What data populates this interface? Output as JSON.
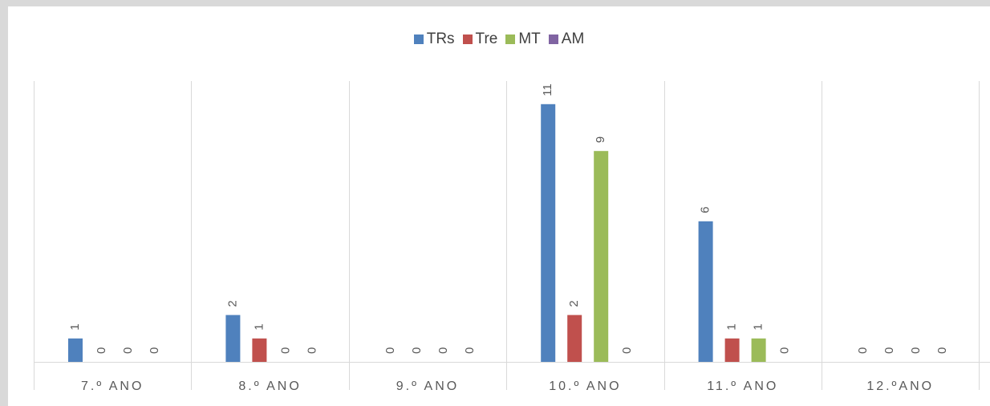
{
  "chart_data": {
    "type": "bar",
    "categories": [
      "7.º ANO",
      "8.º ANO",
      "9.º ANO",
      "10.º ANO",
      "11.º ANO",
      "12.ºANO"
    ],
    "series": [
      {
        "name": "TRs",
        "color": "#4f81bd",
        "values": [
          1,
          2,
          0,
          11,
          6,
          0
        ]
      },
      {
        "name": "Tre",
        "color": "#c0504d",
        "values": [
          0,
          1,
          0,
          2,
          1,
          0
        ]
      },
      {
        "name": "MT",
        "color": "#9bbb59",
        "values": [
          0,
          0,
          0,
          9,
          1,
          0
        ]
      },
      {
        "name": "AM",
        "color": "#8064a2",
        "values": [
          0,
          0,
          0,
          0,
          0,
          0
        ]
      }
    ],
    "ylim": [
      0,
      11
    ],
    "legend_position": "top-center",
    "data_labels": "rotated",
    "category_separators": true
  }
}
